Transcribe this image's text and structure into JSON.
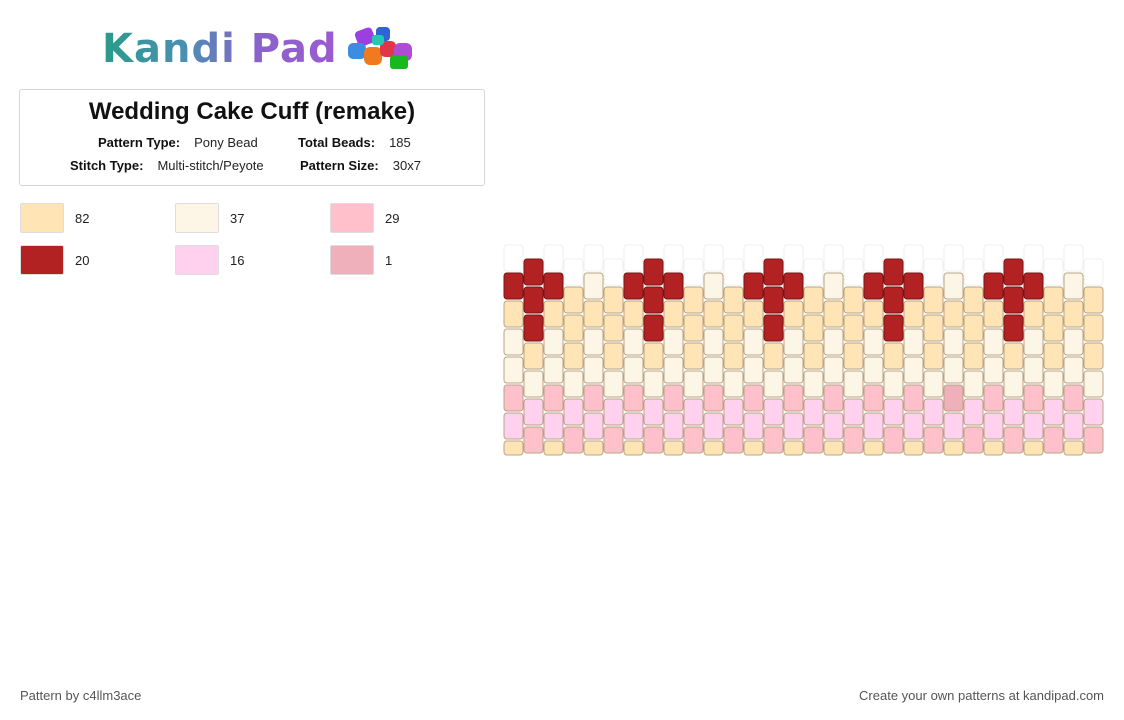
{
  "logo": {
    "text": "Kandi Pad"
  },
  "pattern": {
    "title": "Wedding Cake Cuff (remake)",
    "type_label": "Pattern Type:",
    "type_value": "Pony Bead",
    "total_label": "Total Beads:",
    "total_value": "185",
    "stitch_label": "Stitch Type:",
    "stitch_value": "Multi-stitch/Peyote",
    "size_label": "Pattern Size:",
    "size_value": "30x7"
  },
  "legend": [
    {
      "color": "#ffe4b5",
      "count": "82"
    },
    {
      "color": "#fdf5e6",
      "count": "37"
    },
    {
      "color": "#ffc0cb",
      "count": "29"
    },
    {
      "color": "#b22222",
      "count": "20"
    },
    {
      "color": "#ffd1ee",
      "count": "16"
    },
    {
      "color": "#f0b0bb",
      "count": "1"
    }
  ],
  "footer": {
    "credit": "Pattern by c4llm3ace",
    "promo": "Create your own patterns at kandipad.com"
  }
}
